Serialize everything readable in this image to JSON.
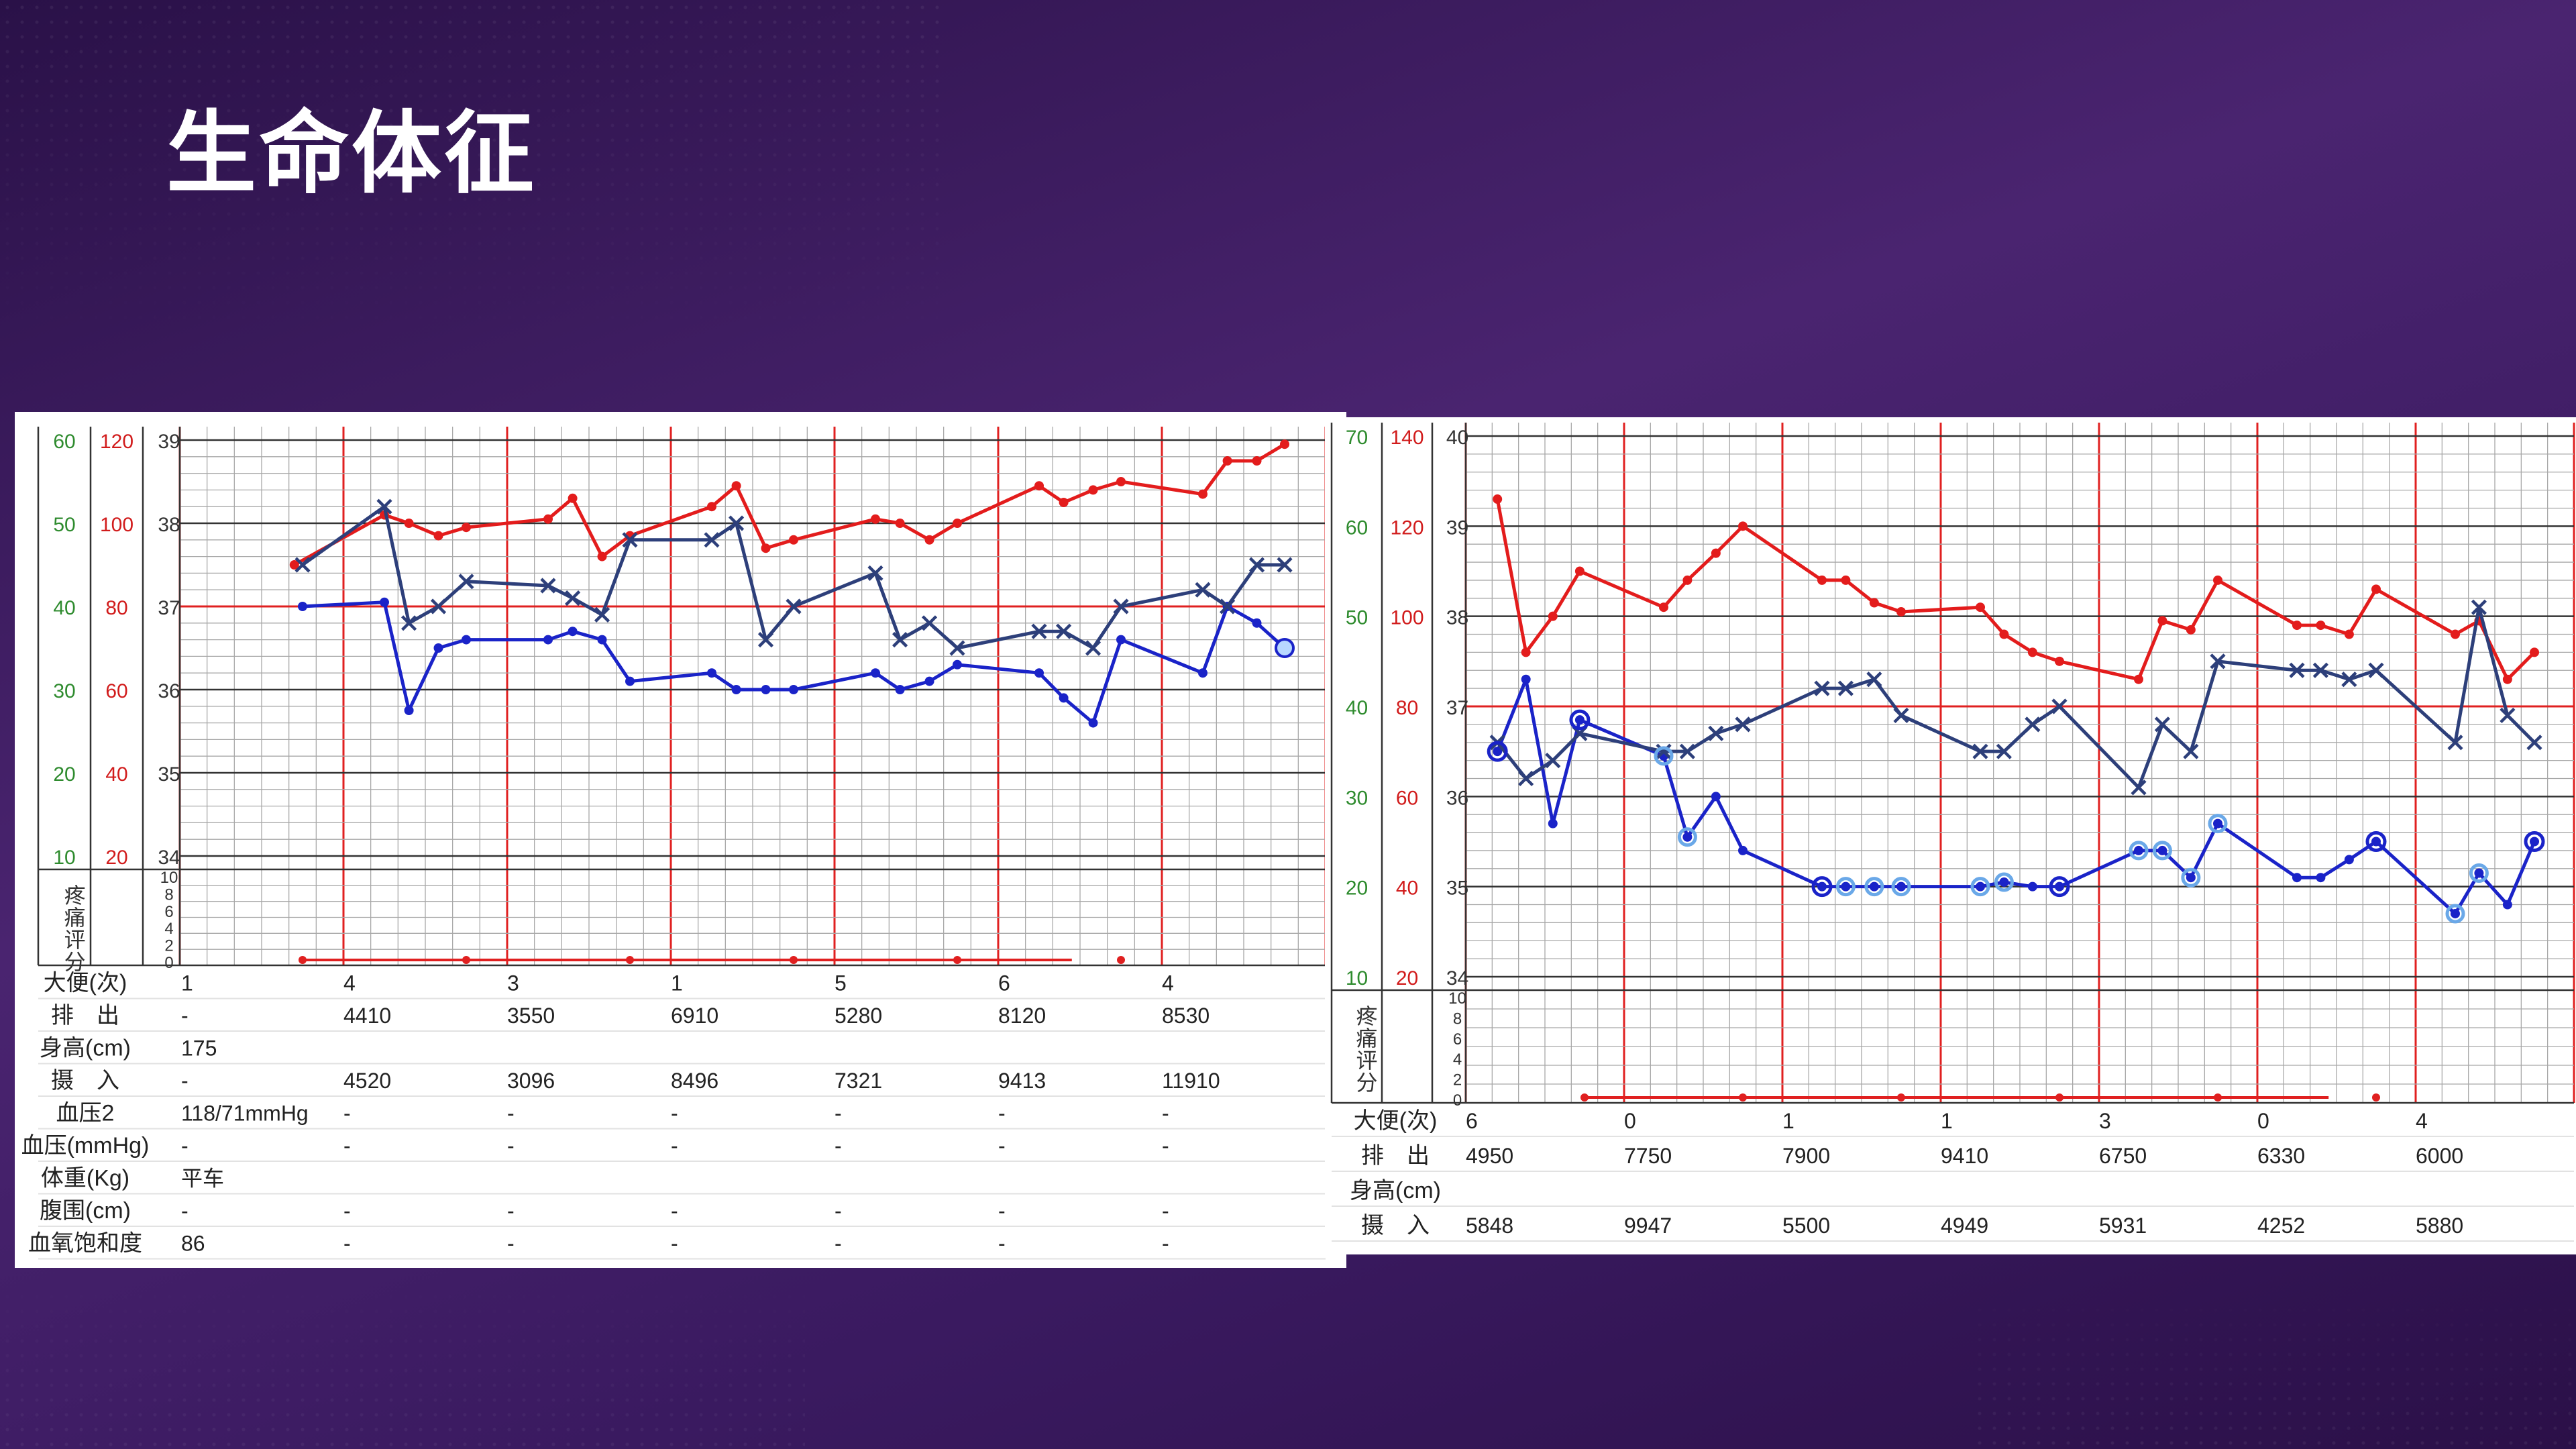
{
  "title": "生命体征",
  "colors": {
    "temp": "#e31c1c",
    "pulse": "#1a23c8",
    "resp": "#2d3f7a",
    "red_line": "#e02020",
    "axis_green": "#2e8b2e",
    "axis_red": "#d11b1b",
    "grid": "#9a9a9a",
    "light_marker": "#6aa8e8"
  },
  "labels": {
    "pain": [
      "疼",
      "痛",
      "评",
      "分"
    ],
    "pain_ticks": [
      "10",
      "8",
      "6",
      "4",
      "2",
      "0"
    ]
  },
  "chart_data": [
    {
      "type": "line",
      "axes": {
        "resp": {
          "ticks": [
            "10",
            "20",
            "30",
            "40",
            "50",
            "60"
          ],
          "ylim": [
            10,
            60
          ]
        },
        "pulse": {
          "ticks": [
            "20",
            "40",
            "60",
            "80",
            "100",
            "120"
          ],
          "ylim": [
            20,
            120
          ]
        },
        "temp": {
          "ticks": [
            "34",
            "35",
            "36",
            "37",
            "38",
            "39"
          ],
          "ylim": [
            34,
            39
          ]
        }
      },
      "days": 7,
      "series": [
        {
          "key": "temp",
          "color": "#e31c1c",
          "marker": "dot",
          "points": [
            [
              0.7,
              37.5
            ],
            [
              1.25,
              38.1
            ],
            [
              1.4,
              38.0
            ],
            [
              1.58,
              37.85
            ],
            [
              1.75,
              37.95
            ],
            [
              2.25,
              38.05
            ],
            [
              2.4,
              38.3
            ],
            [
              2.58,
              37.6
            ],
            [
              2.75,
              37.85
            ],
            [
              3.25,
              38.2
            ],
            [
              3.4,
              38.45
            ],
            [
              3.58,
              37.7
            ],
            [
              3.75,
              37.8
            ],
            [
              4.25,
              38.05
            ],
            [
              4.4,
              38.0
            ],
            [
              4.58,
              37.8
            ],
            [
              4.75,
              38.0
            ],
            [
              5.25,
              38.45
            ],
            [
              5.4,
              38.25
            ],
            [
              5.58,
              38.4
            ],
            [
              5.75,
              38.5
            ],
            [
              6.25,
              38.35
            ],
            [
              6.4,
              38.75
            ],
            [
              6.58,
              38.75
            ],
            [
              6.75,
              38.95
            ]
          ]
        },
        {
          "key": "pulse",
          "color": "#1a23c8",
          "marker": "dot",
          "points": [
            [
              0.75,
              37.0
            ],
            [
              1.25,
              37.05
            ],
            [
              1.4,
              35.75
            ],
            [
              1.58,
              36.5
            ],
            [
              1.75,
              36.6
            ],
            [
              2.25,
              36.6
            ],
            [
              2.4,
              36.7
            ],
            [
              2.58,
              36.6
            ],
            [
              2.75,
              36.1
            ],
            [
              3.25,
              36.2
            ],
            [
              3.4,
              36.0
            ],
            [
              3.58,
              36.0
            ],
            [
              3.75,
              36.0
            ],
            [
              4.25,
              36.2
            ],
            [
              4.4,
              36.0
            ],
            [
              4.58,
              36.1
            ],
            [
              4.75,
              36.3
            ],
            [
              5.25,
              36.2
            ],
            [
              5.4,
              35.9
            ],
            [
              5.58,
              35.6
            ],
            [
              5.75,
              36.6
            ],
            [
              6.25,
              36.2
            ],
            [
              6.4,
              37.0
            ],
            [
              6.58,
              36.8
            ],
            [
              6.75,
              36.5
            ]
          ]
        },
        {
          "key": "resp",
          "color": "#2d3f7a",
          "marker": "x",
          "points": [
            [
              0.75,
              37.5
            ],
            [
              1.25,
              38.2
            ],
            [
              1.4,
              36.8
            ],
            [
              1.58,
              37.0
            ],
            [
              1.75,
              37.3
            ],
            [
              2.25,
              37.25
            ],
            [
              2.4,
              37.1
            ],
            [
              2.58,
              36.9
            ],
            [
              2.75,
              37.8
            ],
            [
              3.25,
              37.8
            ],
            [
              3.4,
              38.0
            ],
            [
              3.58,
              36.6
            ],
            [
              3.75,
              37.0
            ],
            [
              4.25,
              37.4
            ],
            [
              4.4,
              36.6
            ],
            [
              4.58,
              36.8
            ],
            [
              4.75,
              36.5
            ],
            [
              5.25,
              36.7
            ],
            [
              5.4,
              36.7
            ],
            [
              5.58,
              36.5
            ],
            [
              5.75,
              37.0
            ],
            [
              6.25,
              37.2
            ],
            [
              6.4,
              37.0
            ],
            [
              6.58,
              37.5
            ],
            [
              6.75,
              37.5
            ]
          ]
        }
      ],
      "open_circle": [
        6.75,
        36.5
      ],
      "bottom_table": {
        "row_labels": [
          "大便(次)",
          "排　出",
          "身高(cm)",
          "摄　入",
          "血压2",
          "血压(mmHg)",
          "体重(Kg)",
          "腹围(cm)",
          "血氧饱和度"
        ],
        "col0": [
          "1",
          "-",
          "175",
          "-",
          "118/71mmHg",
          "-",
          "平车",
          "-",
          "86"
        ],
        "days": [
          [
            "4",
            "4410",
            "",
            "4520",
            "-",
            "-",
            "",
            "-",
            "-"
          ],
          [
            "3",
            "3550",
            "",
            "3096",
            "-",
            "-",
            "",
            "-",
            "-"
          ],
          [
            "1",
            "6910",
            "",
            "8496",
            "-",
            "-",
            "",
            "-",
            "-"
          ],
          [
            "5",
            "5280",
            "",
            "7321",
            "-",
            "-",
            "",
            "-",
            "-"
          ],
          [
            "6",
            "8120",
            "",
            "9413",
            "-",
            "-",
            "",
            "-",
            "-"
          ],
          [
            "4",
            "8530",
            "",
            "11910",
            "-",
            "-",
            "",
            "-",
            "-"
          ]
        ]
      }
    },
    {
      "type": "line",
      "axes": {
        "resp": {
          "ticks": [
            "10",
            "20",
            "30",
            "40",
            "50",
            "60",
            "70"
          ],
          "ylim": [
            10,
            70
          ]
        },
        "pulse": {
          "ticks": [
            "20",
            "40",
            "60",
            "80",
            "100",
            "120",
            "140"
          ],
          "ylim": [
            20,
            140
          ]
        },
        "temp": {
          "ticks": [
            "34",
            "35",
            "36",
            "37",
            "38",
            "39",
            "40"
          ],
          "ylim": [
            34,
            40
          ]
        }
      },
      "days": 7,
      "series": [
        {
          "key": "temp",
          "color": "#e31c1c",
          "marker": "dot",
          "points": [
            [
              0.2,
              39.3
            ],
            [
              0.38,
              37.6
            ],
            [
              0.55,
              38.0
            ],
            [
              0.72,
              38.5
            ],
            [
              1.25,
              38.1
            ],
            [
              1.4,
              38.4
            ],
            [
              1.58,
              38.7
            ],
            [
              1.75,
              39.0
            ],
            [
              2.25,
              38.4
            ],
            [
              2.4,
              38.4
            ],
            [
              2.58,
              38.15
            ],
            [
              2.75,
              38.05
            ],
            [
              3.25,
              38.1
            ],
            [
              3.4,
              37.8
            ],
            [
              3.58,
              37.6
            ],
            [
              3.75,
              37.5
            ],
            [
              4.25,
              37.3
            ],
            [
              4.4,
              37.95
            ],
            [
              4.58,
              37.85
            ],
            [
              4.75,
              38.4
            ],
            [
              5.25,
              37.9
            ],
            [
              5.4,
              37.9
            ],
            [
              5.58,
              37.8
            ],
            [
              5.75,
              38.3
            ],
            [
              6.25,
              37.8
            ],
            [
              6.4,
              37.95
            ],
            [
              6.58,
              37.3
            ],
            [
              6.75,
              37.6
            ]
          ]
        },
        {
          "key": "pulse",
          "color": "#1a23c8",
          "marker": "dot",
          "points": [
            [
              0.2,
              36.5
            ],
            [
              0.38,
              37.3
            ],
            [
              0.55,
              35.7
            ],
            [
              0.72,
              36.85
            ],
            [
              1.25,
              36.45
            ],
            [
              1.4,
              35.55
            ],
            [
              1.58,
              36.0
            ],
            [
              1.75,
              35.4
            ],
            [
              2.25,
              35.0
            ],
            [
              2.4,
              35.0
            ],
            [
              2.58,
              35.0
            ],
            [
              2.75,
              35.0
            ],
            [
              3.25,
              35.0
            ],
            [
              3.4,
              35.05
            ],
            [
              3.58,
              35.0
            ],
            [
              3.75,
              35.0
            ],
            [
              4.25,
              35.4
            ],
            [
              4.4,
              35.4
            ],
            [
              4.58,
              35.1
            ],
            [
              4.75,
              35.7
            ],
            [
              5.25,
              35.1
            ],
            [
              5.4,
              35.1
            ],
            [
              5.58,
              35.3
            ],
            [
              5.75,
              35.5
            ],
            [
              6.25,
              34.7
            ],
            [
              6.4,
              35.15
            ],
            [
              6.58,
              34.8
            ],
            [
              6.75,
              35.5
            ]
          ]
        },
        {
          "key": "resp",
          "color": "#2d3f7a",
          "marker": "x",
          "points": [
            [
              0.2,
              36.6
            ],
            [
              0.38,
              36.2
            ],
            [
              0.55,
              36.4
            ],
            [
              0.72,
              36.7
            ],
            [
              1.25,
              36.5
            ],
            [
              1.4,
              36.5
            ],
            [
              1.58,
              36.7
            ],
            [
              1.75,
              36.8
            ],
            [
              2.25,
              37.2
            ],
            [
              2.4,
              37.2
            ],
            [
              2.58,
              37.3
            ],
            [
              2.75,
              36.9
            ],
            [
              3.25,
              36.5
            ],
            [
              3.4,
              36.5
            ],
            [
              3.58,
              36.8
            ],
            [
              3.75,
              37.0
            ],
            [
              4.25,
              36.1
            ],
            [
              4.4,
              36.8
            ],
            [
              4.58,
              36.5
            ],
            [
              4.75,
              37.5
            ],
            [
              5.25,
              37.4
            ],
            [
              5.4,
              37.4
            ],
            [
              5.58,
              37.3
            ],
            [
              5.75,
              37.4
            ],
            [
              6.25,
              36.6
            ],
            [
              6.4,
              38.1
            ],
            [
              6.58,
              36.9
            ],
            [
              6.75,
              36.6
            ]
          ]
        }
      ],
      "circles_dark": [
        [
          0.2,
          36.5
        ],
        [
          0.72,
          36.85
        ],
        [
          2.25,
          35.0
        ],
        [
          3.75,
          35.0
        ],
        [
          5.75,
          35.5
        ],
        [
          6.75,
          35.5
        ]
      ],
      "circles_light": [
        [
          1.25,
          36.45
        ],
        [
          1.4,
          35.55
        ],
        [
          2.4,
          35.0
        ],
        [
          2.58,
          35.0
        ],
        [
          2.75,
          35.0
        ],
        [
          3.25,
          35.0
        ],
        [
          3.4,
          35.05
        ],
        [
          4.25,
          35.4
        ],
        [
          4.4,
          35.4
        ],
        [
          4.58,
          35.1
        ],
        [
          4.75,
          35.7
        ],
        [
          6.25,
          34.7
        ],
        [
          6.4,
          35.15
        ]
      ],
      "bottom_table": {
        "row_labels": [
          "大便(次)",
          "排　出",
          "身高(cm)",
          "摄　入"
        ],
        "days": [
          [
            "6",
            "4950",
            "",
            "5848"
          ],
          [
            "0",
            "7750",
            "",
            "9947"
          ],
          [
            "1",
            "7900",
            "",
            "5500"
          ],
          [
            "1",
            "9410",
            "",
            "4949"
          ],
          [
            "3",
            "6750",
            "",
            "5931"
          ],
          [
            "0",
            "6330",
            "",
            "4252"
          ],
          [
            "4",
            "6000",
            "",
            "5880"
          ]
        ]
      }
    }
  ]
}
